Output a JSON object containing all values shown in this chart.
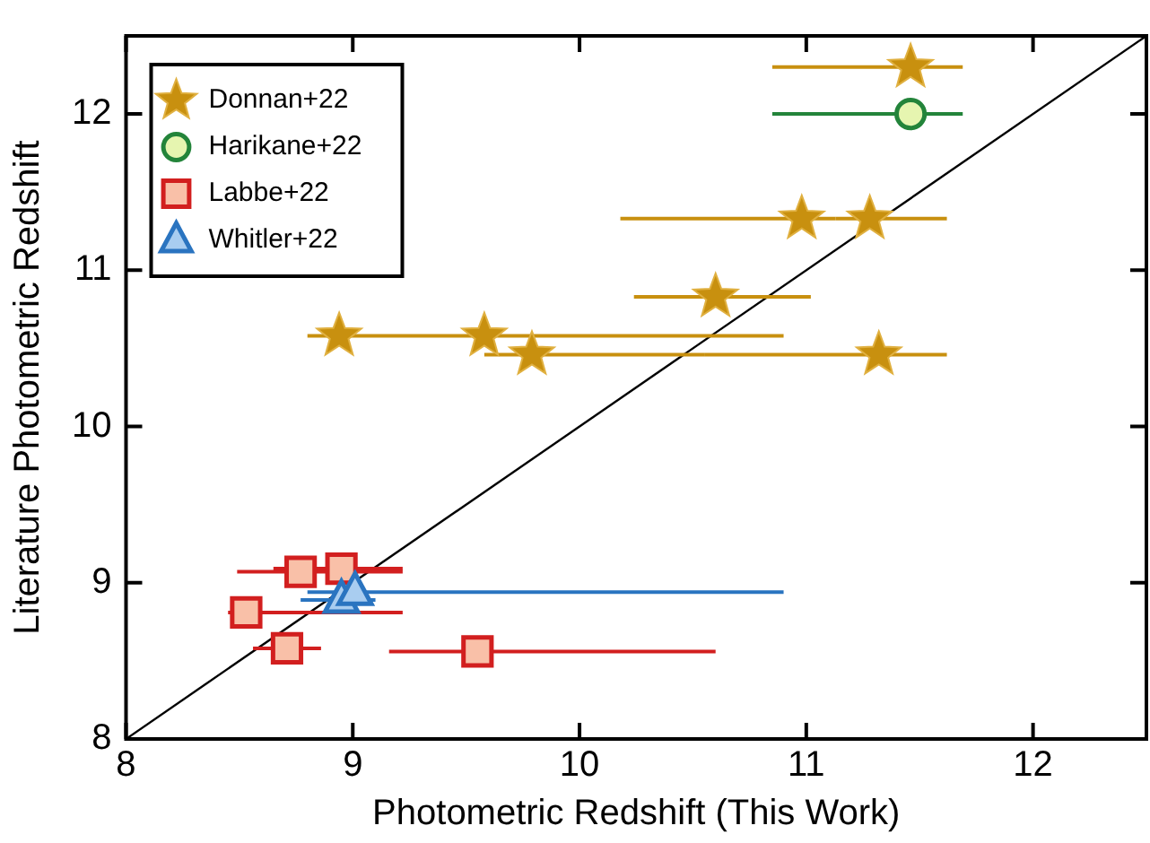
{
  "chart_data": {
    "type": "scatter",
    "xlabel": "Photometric Redshift (This Work)",
    "ylabel": "Literature Photometric Redshift",
    "xlim": [
      8,
      12.5
    ],
    "ylim": [
      8,
      12.5
    ],
    "xticks": [
      8,
      9,
      10,
      11,
      12
    ],
    "yticks": [
      8,
      9,
      10,
      11,
      12
    ],
    "legend": "top left",
    "grid": false,
    "series": [
      {
        "name": "Donnan+22",
        "color": "#c8900f",
        "marker": "star",
        "x": [
          11.46,
          10.98,
          11.28,
          10.6,
          8.94,
          9.58,
          9.79,
          11.32
        ],
        "values": [
          12.3,
          11.33,
          11.33,
          10.83,
          10.58,
          10.58,
          10.46,
          10.46
        ],
        "xerrors": [
          [
            10.85,
            11.69
          ],
          [
            10.18,
            11.13
          ],
          [
            11.13,
            11.62
          ],
          [
            10.24,
            11.02
          ],
          [
            8.8,
            9.26
          ],
          [
            9.26,
            10.9
          ],
          [
            9.58,
            10.55
          ],
          [
            10.55,
            11.62
          ]
        ]
      },
      {
        "name": "Harikane+22",
        "color": "#23843a",
        "marker": "circle",
        "x": [
          11.46
        ],
        "values": [
          12.0
        ],
        "xerrors": [
          [
            10.85,
            11.69
          ]
        ]
      },
      {
        "name": "Labbe+22",
        "color": "#d21f1f",
        "marker": "square",
        "x": [
          8.77,
          8.95,
          8.53,
          8.71,
          9.55
        ],
        "values": [
          9.07,
          9.09,
          8.81,
          8.58,
          8.56
        ],
        "xerrors": [
          [
            8.49,
            9.22
          ],
          [
            8.65,
            9.22
          ],
          [
            8.45,
            9.22
          ],
          [
            8.56,
            8.86
          ],
          [
            9.16,
            10.6
          ]
        ]
      },
      {
        "name": "Whitler+22",
        "color": "#2a74c0",
        "marker": "triangle",
        "x": [
          8.95,
          9.01
        ],
        "values": [
          8.89,
          8.94
        ],
        "xerrors": [
          [
            8.77,
            9.1
          ],
          [
            8.8,
            10.9
          ]
        ]
      },
      {
        "type": "line",
        "color": "#000000",
        "marker": "none",
        "x": [
          8,
          12.5
        ],
        "values": [
          8,
          12.5
        ]
      }
    ]
  }
}
